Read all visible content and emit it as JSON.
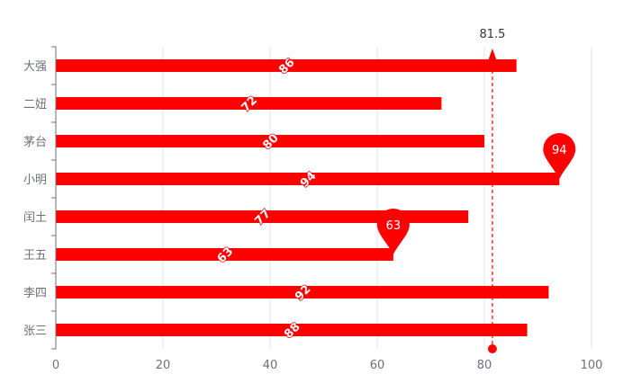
{
  "chart_data": {
    "type": "bar",
    "orientation": "horizontal",
    "categories": [
      "大强",
      "二妞",
      "茅台",
      "小明",
      "闰土",
      "王五",
      "李四",
      "张三"
    ],
    "values": [
      86,
      72,
      80,
      94,
      77,
      63,
      92,
      88
    ],
    "xlim": [
      0,
      100
    ],
    "x_ticks": [
      "0",
      "20",
      "40",
      "60",
      "80",
      "100"
    ],
    "bar_color": "#ff0000",
    "grid": true,
    "mark_points": [
      {
        "label": "94",
        "category": "小明",
        "value": 94
      },
      {
        "label": "63",
        "category": "王五",
        "value": 63
      }
    ],
    "mark_line": {
      "label": "81.5",
      "value": 81.5
    }
  }
}
